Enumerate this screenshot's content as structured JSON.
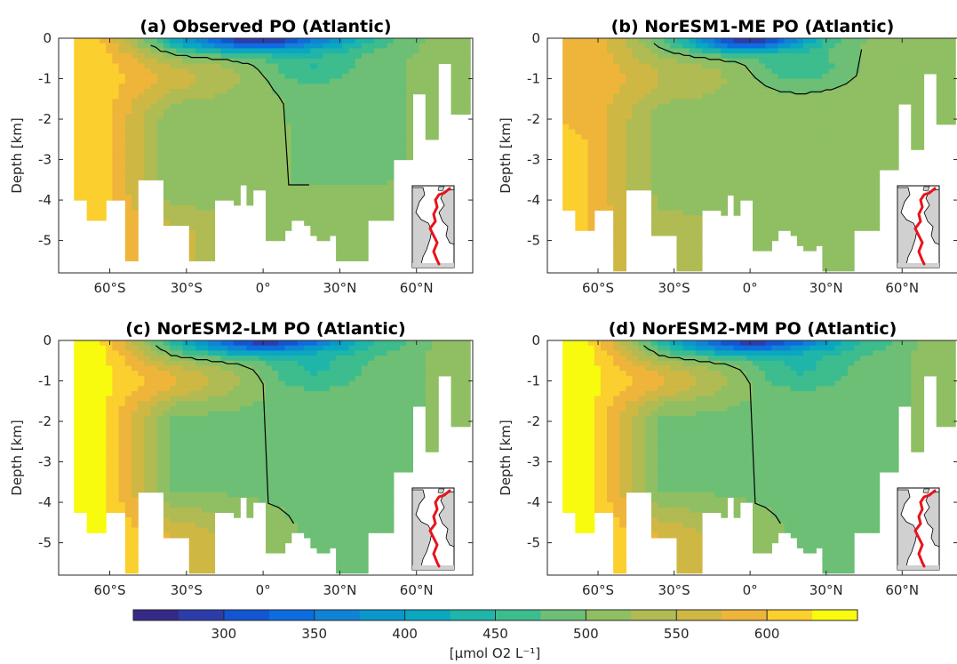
{
  "chart_data": [
    {
      "type": "heatmap",
      "panel": "a",
      "title": "(a) Observed PO (Atlantic)",
      "ylabel": "Depth [km]",
      "xticks": [
        "60°S",
        "30°S",
        "0°",
        "30°N",
        "60°N"
      ],
      "xtick_values": [
        -60,
        -30,
        0,
        30,
        60
      ],
      "yticks": [
        "0",
        "-1",
        "-2",
        "-3",
        "-4",
        "-5"
      ],
      "ytick_values": [
        0,
        -1,
        -2,
        -3,
        -4,
        -5
      ],
      "xlim": [
        -80,
        82
      ],
      "ylim": [
        -5.8,
        0
      ],
      "contour_level": 500,
      "surface_low_core": {
        "lat_range": [
          -25,
          25
        ],
        "value": 270
      },
      "deep_interior_value": 500,
      "southern_value": 600
    },
    {
      "type": "heatmap",
      "panel": "b",
      "title": "(b) NorESM1-ME PO (Atlantic)",
      "ylabel": "Depth [km]",
      "xticks": [
        "60°S",
        "30°S",
        "0°",
        "30°N",
        "60°N"
      ],
      "xtick_values": [
        -60,
        -30,
        0,
        30,
        60
      ],
      "yticks": [
        "0",
        "-1",
        "-2",
        "-3",
        "-4",
        "-5"
      ],
      "ytick_values": [
        0,
        -1,
        -2,
        -3,
        -4,
        -5
      ],
      "xlim": [
        -80,
        82
      ],
      "ylim": [
        -5.8,
        0
      ],
      "contour_level": 500,
      "surface_low_core": {
        "lat_range": [
          -15,
          15
        ],
        "value": 270
      },
      "deep_interior_value": 510,
      "southern_value": 580
    },
    {
      "type": "heatmap",
      "panel": "c",
      "title": "(c) NorESM2-LM PO (Atlantic)",
      "ylabel": "Depth [km]",
      "xticks": [
        "60°S",
        "30°S",
        "0°",
        "30°N",
        "60°N"
      ],
      "xtick_values": [
        -60,
        -30,
        0,
        30,
        60
      ],
      "yticks": [
        "0",
        "-1",
        "-2",
        "-3",
        "-4",
        "-5"
      ],
      "ytick_values": [
        0,
        -1,
        -2,
        -3,
        -4,
        -5
      ],
      "xlim": [
        -80,
        82
      ],
      "ylim": [
        -5.8,
        0
      ],
      "contour_level": 500,
      "surface_low_core": {
        "lat_range": [
          -20,
          25
        ],
        "value": 280
      },
      "deep_interior_value": 490,
      "southern_value": 620
    },
    {
      "type": "heatmap",
      "panel": "d",
      "title": "(d) NorESM2-MM PO (Atlantic)",
      "ylabel": "Depth [km]",
      "xticks": [
        "60°S",
        "30°S",
        "0°",
        "30°N",
        "60°N"
      ],
      "xtick_values": [
        -60,
        -30,
        0,
        30,
        60
      ],
      "yticks": [
        "0",
        "-1",
        "-2",
        "-3",
        "-4",
        "-5"
      ],
      "ytick_values": [
        0,
        -1,
        -2,
        -3,
        -4,
        -5
      ],
      "xlim": [
        -80,
        82
      ],
      "ylim": [
        -5.8,
        0
      ],
      "contour_level": 500,
      "surface_low_core": {
        "lat_range": [
          -20,
          25
        ],
        "value": 280
      },
      "deep_interior_value": 490,
      "southern_value": 620
    }
  ],
  "colorbar": {
    "label": "[μmol O2 L⁻¹]",
    "ticks": [
      "300",
      "350",
      "400",
      "450",
      "500",
      "550",
      "600"
    ],
    "tick_values": [
      300,
      350,
      400,
      450,
      500,
      550,
      600
    ],
    "range": [
      250,
      650
    ],
    "levels": 16,
    "colors": [
      "#352a87",
      "#2c3dab",
      "#1256d3",
      "#0d6de0",
      "#1183d6",
      "#0a97cc",
      "#0aa8c0",
      "#1fb5a8",
      "#3dbc8e",
      "#6cbf75",
      "#8fbf62",
      "#b0bb53",
      "#cfb744",
      "#eeb53a",
      "#fbcf2e",
      "#f9fb0e"
    ]
  }
}
